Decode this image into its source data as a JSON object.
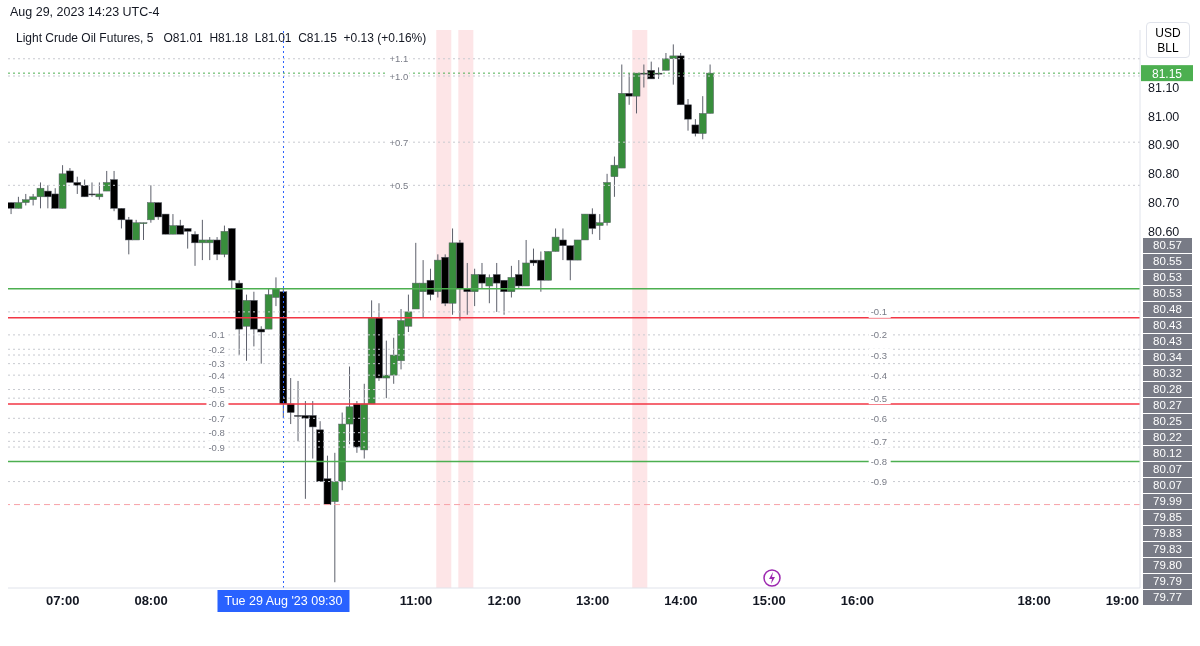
{
  "chart_data": {
    "type": "candlestick",
    "title": "Light Crude Oil Futures, 5",
    "subtitle": "Aug 29, 2023 14:23 UTC-4",
    "annotations": [
      "O81.01  H81.18  L81.01  C81.15  +0.13 (+0.16%)",
      "USD",
      "BLL",
      "80.57",
      "80.55",
      "80.53",
      "80.53",
      "80.48",
      "80.43",
      "80.43",
      "80.34",
      "80.32",
      "80.28",
      "80.27",
      "80.25",
      "80.22",
      "80.12",
      "80.07",
      "80.07",
      "79.99",
      "79.85",
      "79.83",
      "79.83",
      "79.80",
      "79.79",
      "79.77",
      {
        "text": "-0.1",
        "x": 8.65,
        "y": 80.24
      },
      {
        "text": "-0.2",
        "x": 8.65,
        "y": 80.19
      },
      {
        "text": "-0.3",
        "x": 8.65,
        "y": 80.14
      },
      {
        "text": "-0.4",
        "x": 8.65,
        "y": 80.1
      },
      {
        "text": "-0.5",
        "x": 8.65,
        "y": 80.05
      },
      {
        "text": "-0.6",
        "x": 8.65,
        "y": 80.0
      },
      {
        "text": "-0.7",
        "x": 8.65,
        "y": 79.95
      },
      {
        "text": "-0.8",
        "x": 8.65,
        "y": 79.9
      },
      {
        "text": "-0.9",
        "x": 8.65,
        "y": 79.85
      },
      {
        "text": "+1.1",
        "x": 10.7,
        "y": 81.2
      },
      {
        "text": "+1.0",
        "x": 10.7,
        "y": 81.14
      },
      {
        "text": "+0.7",
        "x": 10.7,
        "y": 80.91
      },
      {
        "text": "+0.5",
        "x": 10.7,
        "y": 80.76
      },
      {
        "text": "-0.1",
        "x": 16.15,
        "y": 80.32
      },
      {
        "text": "-0.2",
        "x": 16.15,
        "y": 80.24
      },
      {
        "text": "-0.3",
        "x": 16.15,
        "y": 80.17
      },
      {
        "text": "-0.4",
        "x": 16.15,
        "y": 80.1
      },
      {
        "text": "-0.5",
        "x": 16.15,
        "y": 80.02
      },
      {
        "text": "-0.6",
        "x": 16.15,
        "y": 79.95
      },
      {
        "text": "-0.7",
        "x": 16.15,
        "y": 79.87
      },
      {
        "text": "-0.8",
        "x": 16.15,
        "y": 79.8
      },
      {
        "text": "-0.9",
        "x": 16.15,
        "y": 79.73
      }
    ],
    "x": [
      6.4167,
      6.5,
      6.5833,
      6.6667,
      6.75,
      6.8333,
      6.9167,
      7,
      7.0833,
      7.1667,
      7.25,
      7.3333,
      7.4167,
      7.5,
      7.5833,
      7.6667,
      7.75,
      7.8333,
      7.9167,
      8,
      8.0833,
      8.1667,
      8.25,
      8.3333,
      8.4167,
      8.5,
      8.5833,
      8.6667,
      8.75,
      8.8333,
      8.9167,
      9,
      9.0833,
      9.1667,
      9.25,
      9.3333,
      9.4167,
      9.5,
      9.5833,
      9.6667,
      9.75,
      9.8333,
      9.9167,
      10,
      10.0833,
      10.1667,
      10.25,
      10.3333,
      10.4167,
      10.5,
      10.5833,
      10.6667,
      10.75,
      10.8333,
      10.9167,
      11,
      11.0833,
      11.1667,
      11.25,
      11.3333,
      11.4167,
      11.5,
      11.5833,
      11.6667,
      11.75,
      11.8333,
      11.9167,
      12,
      12.0833,
      12.1667,
      12.25,
      12.3333,
      12.4167,
      12.5,
      12.5833,
      12.6667,
      12.75,
      12.8333,
      12.9167,
      13,
      13.0833,
      13.1667,
      13.25,
      13.3333,
      13.4167,
      13.5,
      13.5833,
      13.6667,
      13.75,
      13.8333,
      13.9167,
      14,
      14.0833,
      14.1667,
      14.25,
      14.3333
    ],
    "ohlc": [
      [
        80.7,
        80.7,
        80.66,
        80.68
      ],
      [
        80.68,
        80.72,
        80.68,
        80.7
      ],
      [
        80.7,
        80.73,
        80.69,
        80.71
      ],
      [
        80.71,
        80.73,
        80.69,
        80.72
      ],
      [
        80.72,
        80.77,
        80.68,
        80.75
      ],
      [
        80.74,
        80.76,
        80.68,
        80.72
      ],
      [
        80.73,
        80.75,
        80.68,
        80.68
      ],
      [
        80.68,
        80.83,
        80.68,
        80.8
      ],
      [
        80.81,
        80.82,
        80.77,
        80.77
      ],
      [
        80.77,
        80.79,
        80.73,
        80.76
      ],
      [
        80.76,
        80.78,
        80.72,
        80.72
      ],
      [
        80.73,
        80.77,
        80.72,
        80.73
      ],
      [
        80.72,
        80.77,
        80.71,
        80.73
      ],
      [
        80.74,
        80.81,
        80.74,
        80.77
      ],
      [
        80.78,
        80.81,
        80.67,
        80.68
      ],
      [
        80.68,
        80.68,
        80.61,
        80.64
      ],
      [
        80.64,
        80.65,
        80.52,
        80.57
      ],
      [
        80.57,
        80.64,
        80.57,
        80.63
      ],
      [
        80.63,
        80.63,
        80.57,
        80.63
      ],
      [
        80.64,
        80.76,
        80.63,
        80.7
      ],
      [
        80.7,
        80.7,
        80.64,
        80.65
      ],
      [
        80.66,
        80.66,
        80.59,
        80.59
      ],
      [
        80.59,
        80.66,
        80.59,
        80.62
      ],
      [
        80.62,
        80.64,
        80.59,
        80.59
      ],
      [
        80.61,
        80.61,
        80.54,
        80.6
      ],
      [
        80.59,
        80.6,
        80.48,
        80.56
      ],
      [
        80.56,
        80.64,
        80.5,
        80.57
      ],
      [
        80.56,
        80.58,
        80.5,
        80.57
      ],
      [
        80.57,
        80.58,
        80.5,
        80.52
      ],
      [
        80.52,
        80.62,
        80.51,
        80.6
      ],
      [
        80.61,
        80.61,
        80.4,
        80.43
      ],
      [
        80.42,
        80.43,
        80.17,
        80.26
      ],
      [
        80.27,
        80.38,
        80.15,
        80.36
      ],
      [
        80.36,
        80.39,
        80.2,
        80.26
      ],
      [
        80.26,
        80.27,
        80.14,
        80.25
      ],
      [
        80.26,
        80.4,
        80.26,
        80.38
      ],
      [
        80.37,
        80.44,
        80.34,
        80.4
      ],
      [
        80.39,
        80.4,
        79.95,
        80.0
      ],
      [
        80.0,
        80.09,
        79.93,
        79.97
      ],
      [
        79.96,
        80.08,
        79.87,
        79.96
      ],
      [
        79.96,
        80.01,
        79.67,
        79.95
      ],
      [
        79.96,
        80.01,
        79.81,
        79.92
      ],
      [
        79.91,
        79.94,
        79.73,
        79.73
      ],
      [
        79.74,
        79.82,
        79.65,
        79.65
      ],
      [
        79.66,
        79.83,
        79.38,
        79.73
      ],
      [
        79.73,
        79.97,
        79.7,
        79.93
      ],
      [
        79.93,
        80.13,
        79.86,
        79.99
      ],
      [
        80.0,
        80.01,
        79.83,
        79.85
      ],
      [
        79.84,
        80.07,
        79.81,
        80.0
      ],
      [
        80.0,
        80.36,
        80.0,
        80.3
      ],
      [
        80.3,
        80.35,
        80.08,
        80.09
      ],
      [
        80.09,
        80.22,
        80.02,
        80.1
      ],
      [
        80.1,
        80.23,
        80.07,
        80.17
      ],
      [
        80.15,
        80.33,
        80.12,
        80.29
      ],
      [
        80.27,
        80.38,
        80.25,
        80.32
      ],
      [
        80.33,
        80.56,
        80.33,
        80.42
      ],
      [
        80.39,
        80.5,
        80.3,
        80.42
      ],
      [
        80.43,
        80.47,
        80.36,
        80.38
      ],
      [
        80.39,
        80.52,
        80.37,
        80.5
      ],
      [
        80.51,
        80.52,
        80.34,
        80.35
      ],
      [
        80.35,
        80.61,
        80.31,
        80.56
      ],
      [
        80.56,
        80.57,
        80.29,
        80.4
      ],
      [
        80.4,
        80.49,
        80.31,
        80.39
      ],
      [
        80.39,
        80.47,
        80.34,
        80.45
      ],
      [
        80.45,
        80.49,
        80.4,
        80.42
      ],
      [
        80.41,
        80.45,
        80.35,
        80.44
      ],
      [
        80.45,
        80.49,
        80.32,
        80.42
      ],
      [
        80.43,
        80.43,
        80.31,
        80.39
      ],
      [
        80.39,
        80.48,
        80.37,
        80.44
      ],
      [
        80.45,
        80.5,
        80.4,
        80.41
      ],
      [
        80.41,
        80.57,
        80.41,
        80.49
      ],
      [
        80.5,
        80.54,
        80.48,
        80.49
      ],
      [
        80.5,
        80.53,
        80.39,
        80.43
      ],
      [
        80.43,
        80.53,
        80.43,
        80.53
      ],
      [
        80.53,
        80.61,
        80.53,
        80.58
      ],
      [
        80.57,
        80.61,
        80.5,
        80.55
      ],
      [
        80.55,
        80.55,
        80.43,
        80.5
      ],
      [
        80.5,
        80.57,
        80.5,
        80.57
      ],
      [
        80.57,
        80.66,
        80.57,
        80.66
      ],
      [
        80.66,
        80.68,
        80.59,
        80.61
      ],
      [
        80.62,
        80.66,
        80.57,
        80.63
      ],
      [
        80.63,
        80.8,
        80.62,
        80.77
      ],
      [
        80.79,
        80.86,
        80.72,
        80.83
      ],
      [
        80.82,
        81.18,
        80.82,
        81.08
      ],
      [
        81.08,
        81.15,
        81.04,
        81.07
      ],
      [
        81.07,
        81.15,
        81.01,
        81.15
      ],
      [
        81.15,
        81.18,
        81.1,
        81.15
      ],
      [
        81.16,
        81.19,
        81.13,
        81.13
      ],
      [
        81.15,
        81.17,
        81.13,
        81.15
      ],
      [
        81.16,
        81.22,
        81.16,
        81.2
      ],
      [
        81.2,
        81.25,
        81.11,
        81.21
      ],
      [
        81.21,
        81.22,
        81.04,
        81.04
      ],
      [
        81.04,
        81.06,
        80.95,
        80.99
      ],
      [
        80.97,
        80.99,
        80.93,
        80.94
      ],
      [
        80.94,
        81.07,
        80.92,
        81.01
      ],
      [
        81.01,
        81.18,
        81.01,
        81.15
      ]
    ],
    "colors": [
      "#000000",
      "#388e3c",
      "#388e3c",
      "#388e3c",
      "#388e3c",
      "#000000",
      "#000000",
      "#388e3c",
      "#000000",
      "#000000",
      "#000000",
      "#000000",
      "#388e3c",
      "#388e3c",
      "#000000",
      "#000000",
      "#000000",
      "#388e3c",
      "#388e3c",
      "#388e3c",
      "#000000",
      "#000000",
      "#388e3c",
      "#000000",
      "#000000",
      "#000000",
      "#388e3c",
      "#388e3c",
      "#000000",
      "#388e3c",
      "#000000",
      "#000000",
      "#388e3c",
      "#000000",
      "#000000",
      "#388e3c",
      "#388e3c",
      "#000000",
      "#000000",
      "#000000",
      "#000000",
      "#000000",
      "#000000",
      "#000000",
      "#388e3c",
      "#388e3c",
      "#388e3c",
      "#000000",
      "#388e3c",
      "#388e3c",
      "#000000",
      "#388e3c",
      "#388e3c",
      "#388e3c",
      "#388e3c",
      "#388e3c",
      "#388e3c",
      "#000000",
      "#388e3c",
      "#000000",
      "#388e3c",
      "#000000",
      "#000000",
      "#388e3c",
      "#000000",
      "#388e3c",
      "#000000",
      "#000000",
      "#388e3c",
      "#000000",
      "#388e3c",
      "#000000",
      "#000000",
      "#388e3c",
      "#388e3c",
      "#000000",
      "#000000",
      "#388e3c",
      "#388e3c",
      "#000000",
      "#388e3c",
      "#388e3c",
      "#388e3c",
      "#388e3c",
      "#000000",
      "#388e3c",
      "#000000",
      "#000000",
      "#000000",
      "#388e3c",
      "#388e3c",
      "#000000",
      "#000000",
      "#000000",
      "#388e3c",
      "#388e3c"
    ],
    "xlim": [
      6.38,
      19.2
    ],
    "xticks": [
      {
        "value": 7,
        "label": "07:00"
      },
      {
        "value": 8,
        "label": "08:00"
      },
      {
        "value": 11,
        "label": "11:00"
      },
      {
        "value": 12,
        "label": "12:00"
      },
      {
        "value": 13,
        "label": "13:00"
      },
      {
        "value": 14,
        "label": "14:00"
      },
      {
        "value": 15,
        "label": "15:00"
      },
      {
        "value": 16,
        "label": "16:00"
      },
      {
        "value": 18,
        "label": "18:00"
      },
      {
        "value": 19,
        "label": "19:00"
      }
    ],
    "ylim": [
      79.36,
      81.3
    ],
    "yticks": [
      {
        "value": 80.6,
        "label": "80.60"
      },
      {
        "value": 80.7,
        "label": "80.70"
      },
      {
        "value": 80.8,
        "label": "80.80"
      },
      {
        "value": 80.9,
        "label": "80.90"
      },
      {
        "value": 81.0,
        "label": "81.00"
      },
      {
        "value": 81.1,
        "label": "81.10"
      }
    ],
    "bands": [
      {
        "axis": "x",
        "from": 11.23,
        "to": 11.4,
        "color": "#fde2e4"
      },
      {
        "axis": "x",
        "from": 11.48,
        "to": 11.65,
        "color": "#fde2e4"
      },
      {
        "axis": "x",
        "from": 13.45,
        "to": 13.62,
        "color": "#fde2e4"
      }
    ],
    "ref_lines": [
      {
        "axis": "x",
        "value": 9.5,
        "label": "Tue 29 Aug '23   09:30",
        "color": "#2962ff",
        "line_style": "dotted"
      },
      {
        "axis": "y",
        "value": 81.15,
        "label": "81.15",
        "color": "#4caf50",
        "line_style": "dotted"
      },
      {
        "axis": "y",
        "value": 80.24,
        "color": "#c8cad0",
        "line_style": "dotted"
      },
      {
        "axis": "y",
        "value": 80.19,
        "color": "#c8cad0",
        "line_style": "dotted"
      },
      {
        "axis": "y",
        "value": 80.14,
        "color": "#c8cad0",
        "line_style": "dotted"
      },
      {
        "axis": "y",
        "value": 80.1,
        "color": "#c8cad0",
        "line_style": "dotted"
      },
      {
        "axis": "y",
        "value": 80.05,
        "color": "#c8cad0",
        "line_style": "dotted"
      },
      {
        "axis": "y",
        "value": 79.95,
        "color": "#c8cad0",
        "line_style": "dotted"
      },
      {
        "axis": "y",
        "value": 79.9,
        "color": "#c8cad0",
        "line_style": "dotted"
      },
      {
        "axis": "y",
        "value": 79.85,
        "color": "#c8cad0",
        "line_style": "dotted"
      },
      {
        "axis": "y",
        "value": 81.2,
        "color": "#c8cad0",
        "line_style": "dotted"
      },
      {
        "axis": "y",
        "value": 81.14,
        "color": "#c8cad0",
        "line_style": "dotted"
      },
      {
        "axis": "y",
        "value": 80.91,
        "color": "#c8cad0",
        "line_style": "dotted"
      },
      {
        "axis": "y",
        "value": 80.76,
        "color": "#c8cad0",
        "line_style": "dotted"
      },
      {
        "axis": "y",
        "value": 80.32,
        "color": "#c8cad0",
        "line_style": "dotted"
      },
      {
        "axis": "y",
        "value": 80.17,
        "color": "#c8cad0",
        "line_style": "dotted"
      },
      {
        "axis": "y",
        "value": 80.02,
        "color": "#c8cad0",
        "line_style": "dotted"
      },
      {
        "axis": "y",
        "value": 79.87,
        "color": "#c8cad0",
        "line_style": "dotted"
      },
      {
        "axis": "y",
        "value": 79.73,
        "color": "#c8cad0",
        "line_style": "dotted"
      },
      {
        "axis": "y",
        "value": 80.4,
        "color": "#4caf50",
        "line_style": "solid"
      },
      {
        "axis": "y",
        "value": 80.3,
        "color": "#f23645",
        "line_style": "solid"
      },
      {
        "axis": "y",
        "value": 80.0,
        "color": "#f23645",
        "line_style": "solid"
      },
      {
        "axis": "y",
        "value": 79.8,
        "color": "#4caf50",
        "line_style": "solid"
      },
      {
        "axis": "y",
        "value": 79.65,
        "color": "#f7a1a8",
        "line_style": "dashed"
      }
    ]
  }
}
